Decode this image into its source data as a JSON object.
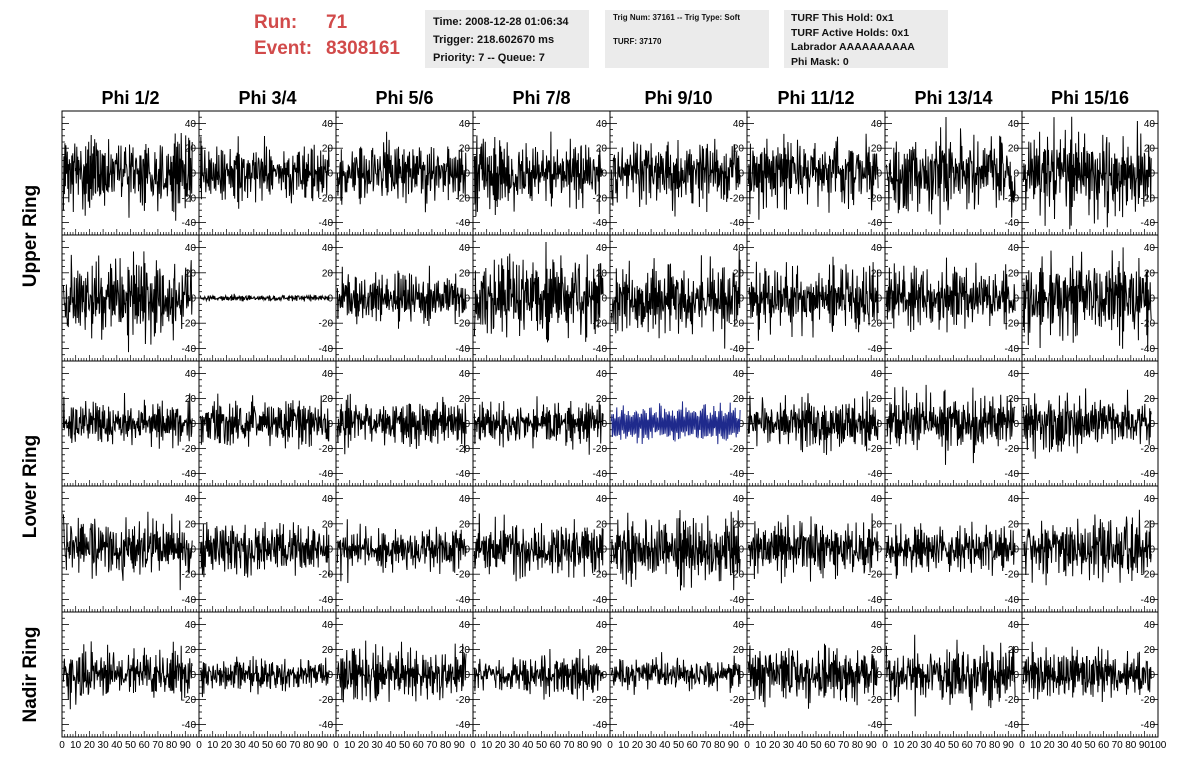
{
  "header": {
    "run_label": "Run:",
    "run_value": "71",
    "event_label": "Event:",
    "event_value": "8308161"
  },
  "time_box": {
    "time": "Time: 2008-12-28 01:06:34",
    "trigger": "Trigger: 218.602670 ms",
    "priority": "Priority: 7 -- Queue: 7"
  },
  "trig_box": {
    "trig": "Trig Num: 37161 -- Trig Type: Soft",
    "turf": "TURF: 37170"
  },
  "turf_box": {
    "this_hold": "TURF This Hold: 0x1",
    "active_holds": "TURF Active Holds: 0x1",
    "labrador": "Labrador AAAAAAAAAA",
    "phi_mask": "Phi Mask: 0"
  },
  "colors": {
    "trace": "#000000",
    "highlight_trace": "#1f2a8c",
    "header_red": "#d14a4a",
    "info_box_bg": "#ebebeb"
  },
  "chart_data": {
    "type": "line",
    "layout": "grid of waveform panels, 5 rows x 8 columns",
    "column_titles": [
      "Phi 1/2",
      "Phi 3/4",
      "Phi 5/6",
      "Phi 7/8",
      "Phi 9/10",
      "Phi 11/12",
      "Phi 13/14",
      "Phi 15/16"
    ],
    "ring_titles": [
      "Upper Ring",
      "Lower Ring",
      "Nadir Ring"
    ],
    "ring_rows": [
      [
        0,
        1
      ],
      [
        2,
        3
      ],
      [
        4,
        4
      ]
    ],
    "xlim": [
      0,
      100
    ],
    "ylim": [
      -50,
      50
    ],
    "yticks": [
      -40,
      -20,
      0,
      20,
      40
    ],
    "xticks": [
      0,
      10,
      20,
      30,
      40,
      50,
      60,
      70,
      80,
      90,
      100
    ],
    "xtick_labels": [
      "0",
      "10",
      "20",
      "30",
      "40",
      "50",
      "60",
      "70",
      "80",
      "90",
      "100"
    ],
    "samples_per_trace": 260,
    "panels": [
      {
        "row": 0,
        "col": 0,
        "amplitude": 13,
        "rms": 0.35
      },
      {
        "row": 0,
        "col": 1,
        "amplitude": 11,
        "rms": 0.3
      },
      {
        "row": 0,
        "col": 2,
        "amplitude": 11,
        "rms": 0.3
      },
      {
        "row": 0,
        "col": 3,
        "amplitude": 12,
        "rms": 0.32
      },
      {
        "row": 0,
        "col": 4,
        "amplitude": 12,
        "rms": 0.32
      },
      {
        "row": 0,
        "col": 5,
        "amplitude": 13,
        "rms": 0.34
      },
      {
        "row": 0,
        "col": 6,
        "amplitude": 14,
        "rms": 0.36
      },
      {
        "row": 0,
        "col": 7,
        "amplitude": 15,
        "rms": 0.4
      },
      {
        "row": 1,
        "col": 0,
        "amplitude": 14,
        "rms": 0.38
      },
      {
        "row": 1,
        "col": 1,
        "amplitude": 1.5,
        "rms": 0.05
      },
      {
        "row": 1,
        "col": 2,
        "amplitude": 9,
        "rms": 0.26
      },
      {
        "row": 1,
        "col": 3,
        "amplitude": 14,
        "rms": 0.38
      },
      {
        "row": 1,
        "col": 4,
        "amplitude": 13,
        "rms": 0.36
      },
      {
        "row": 1,
        "col": 5,
        "amplitude": 12,
        "rms": 0.33
      },
      {
        "row": 1,
        "col": 6,
        "amplitude": 11,
        "rms": 0.3
      },
      {
        "row": 1,
        "col": 7,
        "amplitude": 14,
        "rms": 0.38
      },
      {
        "row": 2,
        "col": 0,
        "amplitude": 9,
        "rms": 0.26
      },
      {
        "row": 2,
        "col": 1,
        "amplitude": 9,
        "rms": 0.26
      },
      {
        "row": 2,
        "col": 2,
        "amplitude": 10,
        "rms": 0.28
      },
      {
        "row": 2,
        "col": 3,
        "amplitude": 9,
        "rms": 0.26
      },
      {
        "row": 2,
        "col": 4,
        "amplitude": 12,
        "rms": 0.4,
        "highlight": true
      },
      {
        "row": 2,
        "col": 5,
        "amplitude": 10,
        "rms": 0.28
      },
      {
        "row": 2,
        "col": 6,
        "amplitude": 11,
        "rms": 0.3
      },
      {
        "row": 2,
        "col": 7,
        "amplitude": 10,
        "rms": 0.28
      },
      {
        "row": 3,
        "col": 0,
        "amplitude": 11,
        "rms": 0.3
      },
      {
        "row": 3,
        "col": 1,
        "amplitude": 10,
        "rms": 0.28
      },
      {
        "row": 3,
        "col": 2,
        "amplitude": 9,
        "rms": 0.26
      },
      {
        "row": 3,
        "col": 3,
        "amplitude": 10,
        "rms": 0.28
      },
      {
        "row": 3,
        "col": 4,
        "amplitude": 11,
        "rms": 0.3
      },
      {
        "row": 3,
        "col": 5,
        "amplitude": 10,
        "rms": 0.28
      },
      {
        "row": 3,
        "col": 6,
        "amplitude": 9,
        "rms": 0.26
      },
      {
        "row": 3,
        "col": 7,
        "amplitude": 12,
        "rms": 0.32
      },
      {
        "row": 4,
        "col": 0,
        "amplitude": 10,
        "rms": 0.28
      },
      {
        "row": 4,
        "col": 1,
        "amplitude": 7,
        "rms": 0.2
      },
      {
        "row": 4,
        "col": 2,
        "amplitude": 10,
        "rms": 0.28
      },
      {
        "row": 4,
        "col": 3,
        "amplitude": 8,
        "rms": 0.22
      },
      {
        "row": 4,
        "col": 4,
        "amplitude": 7,
        "rms": 0.2
      },
      {
        "row": 4,
        "col": 5,
        "amplitude": 10,
        "rms": 0.28
      },
      {
        "row": 4,
        "col": 6,
        "amplitude": 11,
        "rms": 0.3
      },
      {
        "row": 4,
        "col": 7,
        "amplitude": 10,
        "rms": 0.28
      }
    ]
  }
}
